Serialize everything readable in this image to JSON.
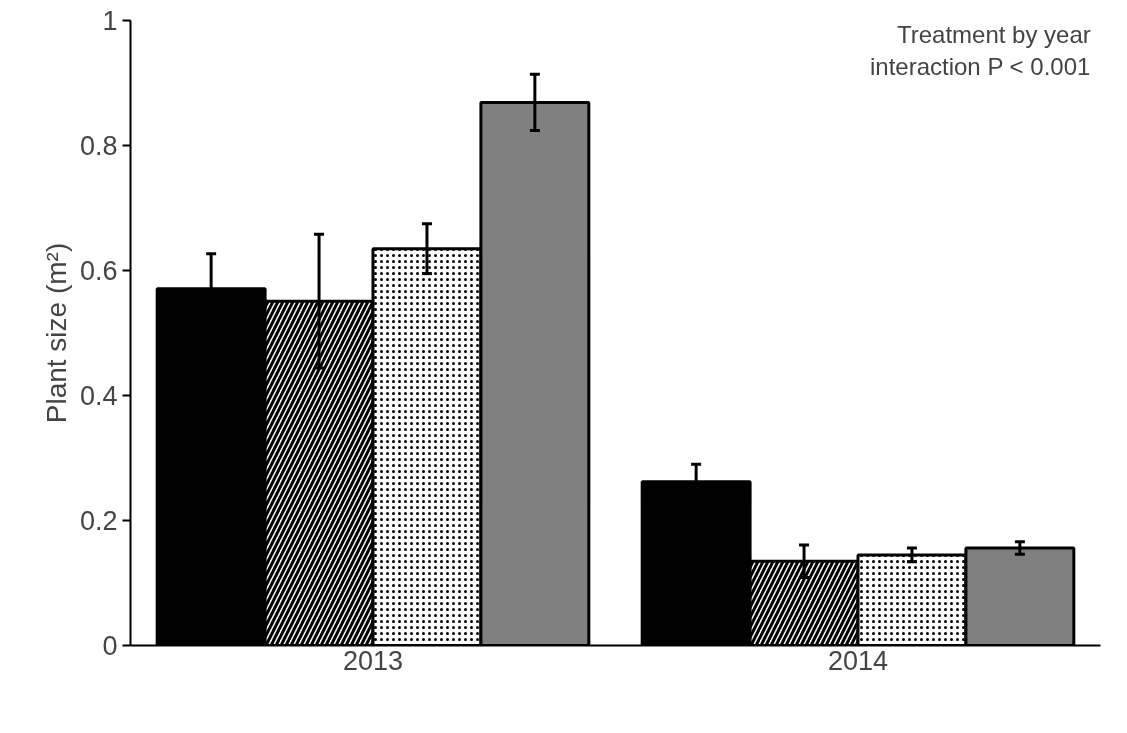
{
  "chart_data": {
    "type": "bar",
    "ylabel": "Plant size (m²)",
    "categories": [
      "2013",
      "2014"
    ],
    "series": [
      {
        "color": "#000000",
        "values": [
          0.571,
          0.262
        ],
        "errors": [
          0.056,
          0.028
        ]
      },
      {
        "color": "#ffffff",
        "values": [
          0.551,
          0.135
        ],
        "errors": [
          0.107,
          0.026
        ]
      },
      {
        "color": "#ffffff",
        "values": [
          0.635,
          0.145
        ],
        "errors": [
          0.04,
          0.011
        ]
      },
      {
        "color": "#808080",
        "values": [
          0.869,
          0.156
        ],
        "errors": [
          0.045,
          0.01
        ]
      }
    ],
    "ylim": [
      0,
      1
    ],
    "yticks": [
      0,
      0.2,
      0.4,
      0.6,
      0.8,
      1
    ],
    "annotations": [
      "Treatment by year\ninteraction P < 0.001"
    ]
  }
}
